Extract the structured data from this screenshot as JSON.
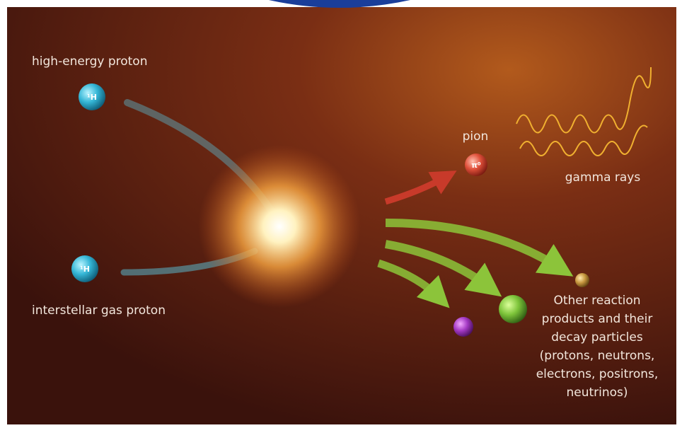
{
  "labels": {
    "high_energy_proton": "high-energy proton",
    "interstellar_gas_proton": "interstellar gas proton",
    "pion": "pion",
    "gamma_rays": "gamma rays"
  },
  "particle_symbols": {
    "high_energy_proton": "¹H",
    "interstellar_gas_proton": "¹H",
    "pion": "π⁰"
  },
  "products": {
    "lines": [
      "Other reaction",
      "products and their",
      "decay particles",
      "(protons, neutrons,",
      "electrons, positrons,",
      "neutrinos)"
    ]
  }
}
